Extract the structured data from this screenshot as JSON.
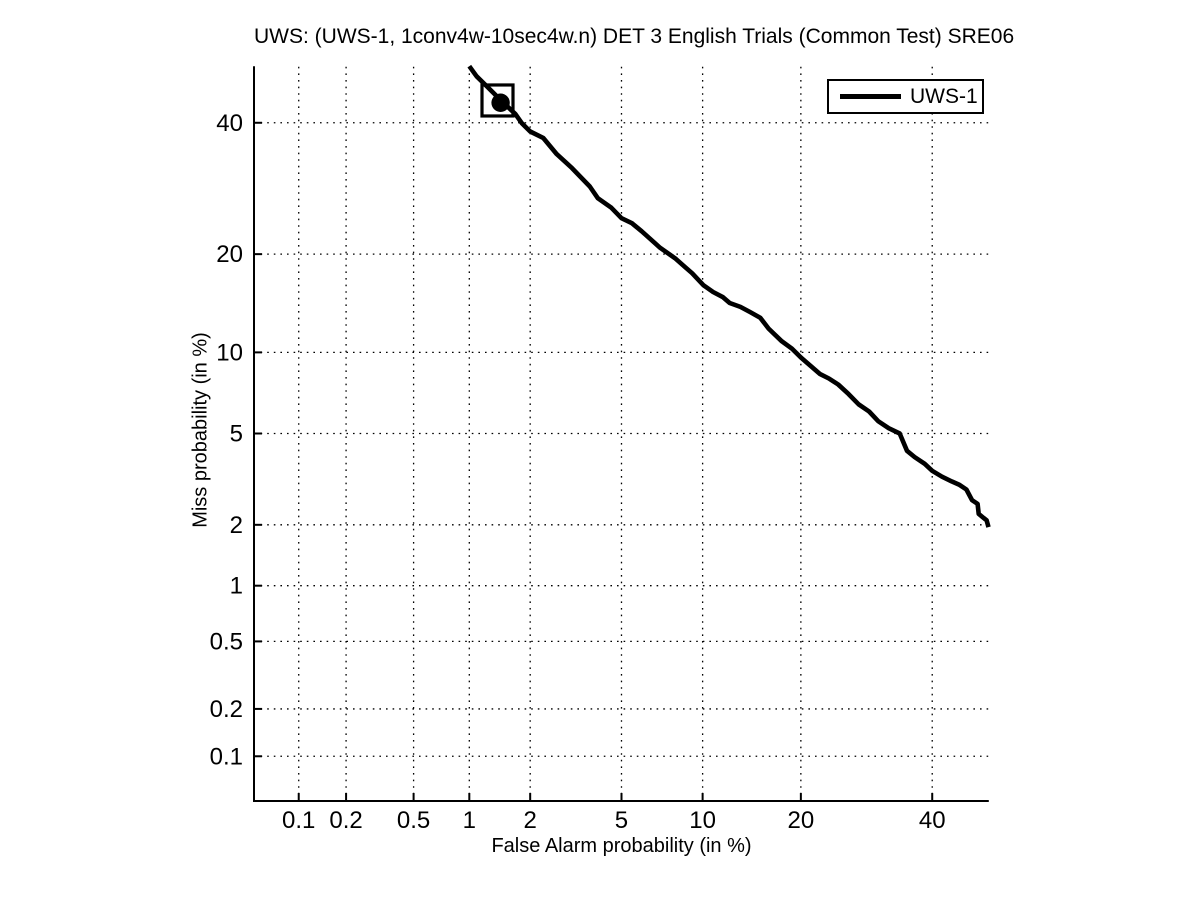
{
  "chart_data": {
    "type": "line",
    "title": "UWS: (UWS-1, 1conv4w-10sec4w.n) DET 3 English Trials (Common Test) SRE06",
    "xlabel": "False Alarm probability (in %)",
    "ylabel": "Miss probability (in %)",
    "x_scale": "probit",
    "y_scale": "probit",
    "xlim_percent": [
      0.05,
      50
    ],
    "ylim_percent": [
      0.05,
      50
    ],
    "x_ticks_percent": [
      0.1,
      0.2,
      0.5,
      1,
      2,
      5,
      10,
      20,
      40
    ],
    "y_ticks_percent": [
      0.1,
      0.2,
      0.5,
      1,
      2,
      5,
      10,
      20,
      40
    ],
    "grid": true,
    "grid_style": "dotted",
    "legend_position": "top-right",
    "colors": {
      "curve": "#000000",
      "grid": "#000000",
      "axis": "#000000",
      "text": "#000000",
      "background": "#ffffff"
    },
    "series": [
      {
        "name": "UWS-1",
        "color": "#000000",
        "points_fa_miss_percent": [
          [
            1.0,
            50.0
          ],
          [
            1.09,
            48.2
          ],
          [
            1.23,
            46.4
          ],
          [
            1.41,
            44.3
          ],
          [
            1.55,
            42.9
          ],
          [
            1.7,
            41.5
          ],
          [
            1.83,
            39.9
          ],
          [
            2.0,
            38.5
          ],
          [
            2.3,
            37.4
          ],
          [
            2.65,
            34.7
          ],
          [
            3.1,
            32.4
          ],
          [
            3.7,
            29.5
          ],
          [
            4.0,
            27.7
          ],
          [
            4.55,
            26.3
          ],
          [
            5.0,
            24.8
          ],
          [
            5.5,
            24.1
          ],
          [
            6.0,
            23.0
          ],
          [
            6.75,
            21.4
          ],
          [
            7.05,
            20.8
          ],
          [
            8.0,
            19.5
          ],
          [
            8.7,
            18.4
          ],
          [
            9.2,
            17.7
          ],
          [
            10.05,
            16.35
          ],
          [
            10.85,
            15.6
          ],
          [
            11.7,
            15.05
          ],
          [
            12.3,
            14.45
          ],
          [
            13.3,
            14.05
          ],
          [
            14.25,
            13.55
          ],
          [
            15.3,
            13.0
          ],
          [
            16.2,
            12.0
          ],
          [
            17.7,
            10.9
          ],
          [
            18.9,
            10.3
          ],
          [
            20.0,
            9.6
          ],
          [
            21.0,
            9.1
          ],
          [
            22.5,
            8.4
          ],
          [
            23.7,
            8.1
          ],
          [
            25.0,
            7.7
          ],
          [
            26.5,
            7.1
          ],
          [
            28.0,
            6.5
          ],
          [
            29.6,
            6.1
          ],
          [
            31.0,
            5.6
          ],
          [
            32.7,
            5.25
          ],
          [
            34.5,
            5.0
          ],
          [
            35.7,
            4.25
          ],
          [
            37.0,
            4.0
          ],
          [
            38.7,
            3.75
          ],
          [
            40.0,
            3.5
          ],
          [
            41.7,
            3.3
          ],
          [
            43.4,
            3.15
          ],
          [
            44.7,
            3.05
          ],
          [
            46.0,
            2.9
          ],
          [
            47.0,
            2.6
          ],
          [
            48.0,
            2.5
          ],
          [
            48.2,
            2.25
          ],
          [
            49.1,
            2.15
          ],
          [
            49.6,
            2.1
          ],
          [
            49.95,
            1.95
          ]
        ]
      }
    ],
    "markers": [
      {
        "name": "operating-point-square",
        "shape": "square-outline",
        "fa_percent": 1.39,
        "miss_percent": 43.9
      },
      {
        "name": "operating-point-dot",
        "shape": "filled-circle",
        "fa_percent": 1.44,
        "miss_percent": 43.5
      }
    ],
    "legend": {
      "entries": [
        {
          "label": "UWS-1",
          "color": "#000000"
        }
      ]
    }
  }
}
